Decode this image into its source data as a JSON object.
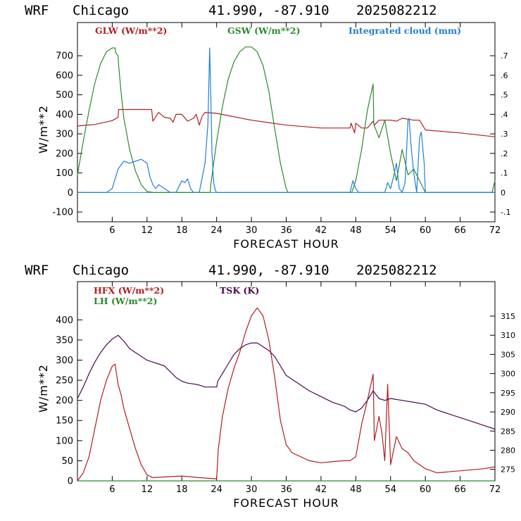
{
  "panels": [
    {
      "header": {
        "model": "WRF",
        "city": "Chicago",
        "coords": "41.990, -87.910",
        "run": "2025082212"
      },
      "legend": [
        {
          "text": "GLW (W/m**2)",
          "color": "#b21e1e"
        },
        {
          "text": "GSW (W/m**2)",
          "color": "#2a8a2a"
        },
        {
          "text": "Integrated cloud (mm)",
          "color": "#1f7fd6"
        }
      ],
      "ylabel": "W/m**2",
      "xlabel": "FORECAST HOUR",
      "yticks": [
        "-100",
        "0",
        "100",
        "200",
        "300",
        "400",
        "500",
        "600",
        "700"
      ],
      "y2ticks": [
        "-.1",
        "0",
        ".1",
        ".2",
        ".3",
        ".4",
        ".5",
        ".6",
        ".7"
      ],
      "xticks": [
        "6",
        "12",
        "18",
        "24",
        "30",
        "36",
        "42",
        "48",
        "54",
        "60",
        "66",
        "72"
      ]
    },
    {
      "header": {
        "model": "WRF",
        "city": "Chicago",
        "coords": "41.990, -87.910",
        "run": "2025082212"
      },
      "legend": [
        {
          "text": "HFX (W/m**2)",
          "color": "#b21e1e"
        },
        {
          "text": "LH (W/m**2)",
          "color": "#2a8a2a"
        },
        {
          "text": "TSK (K)",
          "color": "#4b0a4b"
        }
      ],
      "ylabel": "W/m**2",
      "xlabel": "FORECAST HOUR",
      "yticks": [
        "0",
        "50",
        "100",
        "150",
        "200",
        "250",
        "300",
        "350",
        "400"
      ],
      "y2ticks": [
        "275",
        "280",
        "285",
        "290",
        "295",
        "300",
        "305",
        "310",
        "315"
      ],
      "xticks": [
        "6",
        "12",
        "18",
        "24",
        "30",
        "36",
        "42",
        "48",
        "54",
        "60",
        "66",
        "72"
      ]
    }
  ],
  "chart_data": [
    {
      "type": "line",
      "xlabel": "FORECAST HOUR",
      "ylabel": "W/m**2",
      "xlim": [
        0,
        72
      ],
      "ylim": [
        -150,
        870
      ],
      "y2lim": [
        -0.15,
        0.87
      ],
      "series": [
        {
          "name": "GLW (W/m**2)",
          "color": "#b21e1e",
          "axis": "left",
          "x": [
            0,
            3,
            6,
            7,
            7.1,
            12,
            12.8,
            13,
            14,
            15,
            16,
            16.5,
            17,
            18,
            19,
            20,
            20.5,
            21,
            21.5,
            22,
            24,
            30,
            36,
            42,
            47,
            47.2,
            47.8,
            48,
            49,
            50,
            51,
            51.2,
            52,
            54,
            55,
            56,
            57,
            58,
            59,
            60,
            66,
            72
          ],
          "y": [
            340,
            348,
            368,
            385,
            425,
            425,
            425,
            365,
            410,
            385,
            380,
            360,
            400,
            400,
            365,
            380,
            400,
            345,
            390,
            410,
            405,
            370,
            345,
            330,
            330,
            355,
            305,
            355,
            330,
            330,
            365,
            345,
            370,
            370,
            365,
            380,
            375,
            370,
            370,
            320,
            305,
            285
          ]
        },
        {
          "name": "GSW (W/m**2)",
          "color": "#2a8a2a",
          "axis": "left",
          "x": [
            0,
            1,
            2,
            3,
            4,
            5,
            6,
            6.5,
            6.6,
            7,
            7.1,
            7.5,
            8,
            9,
            10,
            11,
            12,
            13,
            22.9,
            23,
            24,
            25,
            26,
            27,
            28,
            29,
            30,
            31,
            32,
            33,
            34,
            35,
            36,
            36.3,
            47.3,
            48,
            49,
            50,
            51,
            51.1,
            52,
            53,
            54,
            55,
            56,
            57,
            58,
            60,
            71.5,
            72
          ],
          "y": [
            90,
            260,
            420,
            560,
            660,
            720,
            740,
            740,
            715,
            700,
            650,
            520,
            380,
            220,
            110,
            40,
            5,
            0,
            0,
            40,
            260,
            440,
            580,
            670,
            720,
            745,
            745,
            720,
            650,
            520,
            330,
            150,
            20,
            0,
            0,
            60,
            220,
            420,
            555,
            350,
            280,
            370,
            200,
            60,
            220,
            90,
            120,
            0,
            0,
            60
          ]
        },
        {
          "name": "Integrated cloud (mm)",
          "color": "#1f7fd6",
          "axis": "right",
          "x": [
            0,
            5,
            6,
            7,
            8,
            9,
            10,
            11,
            12,
            12.5,
            13,
            13.5,
            14,
            15,
            16,
            17,
            18,
            18.5,
            19,
            19.5,
            20,
            21,
            22,
            22.5,
            22.8,
            23,
            23.2,
            23.5,
            23.8,
            24,
            47,
            47.5,
            48,
            48.5,
            49,
            53,
            53.5,
            54,
            54.5,
            55,
            55.5,
            56,
            56.5,
            57,
            57.2,
            57.5,
            58,
            58.5,
            59,
            59.3,
            59.8,
            60,
            72
          ],
          "y": [
            0,
            0,
            0.02,
            0.12,
            0.16,
            0.15,
            0.16,
            0.17,
            0.15,
            0.08,
            0.04,
            0.02,
            0.04,
            0.02,
            0,
            0,
            0.06,
            0.05,
            0.07,
            0.02,
            0,
            0,
            0.15,
            0.35,
            0.74,
            0.5,
            0.2,
            0.05,
            0.01,
            0,
            0,
            0.06,
            0.02,
            0,
            0,
            0,
            0.05,
            0.02,
            0.08,
            0.15,
            0.02,
            0,
            0.05,
            0.37,
            0.38,
            0.25,
            0.1,
            0,
            0.28,
            0.31,
            0.15,
            0,
            0
          ]
        }
      ]
    },
    {
      "type": "line",
      "xlabel": "FORECAST HOUR",
      "ylabel": "W/m**2",
      "xlim": [
        0,
        72
      ],
      "ylim": [
        0,
        495
      ],
      "y2lim": [
        272,
        324
      ],
      "series": [
        {
          "name": "HFX (W/m**2)",
          "color": "#b21e1e",
          "axis": "left",
          "x": [
            0,
            1,
            2,
            3,
            4,
            5,
            6,
            6.5,
            7,
            7.5,
            8,
            9,
            10,
            11,
            12,
            13,
            18,
            21,
            24,
            24.3,
            25,
            26,
            27,
            28,
            29,
            30,
            31,
            32,
            33,
            34,
            35,
            36,
            37,
            40,
            42,
            44,
            46,
            47,
            48,
            49,
            50,
            51,
            51.2,
            52,
            52.5,
            53,
            53.5,
            54,
            55,
            56,
            57,
            58,
            59,
            60,
            62,
            66,
            70,
            72
          ],
          "y": [
            0,
            20,
            60,
            130,
            200,
            250,
            285,
            290,
            240,
            215,
            180,
            130,
            80,
            40,
            15,
            8,
            12,
            8,
            5,
            80,
            160,
            230,
            280,
            320,
            370,
            410,
            430,
            410,
            350,
            260,
            150,
            90,
            70,
            50,
            45,
            48,
            50,
            50,
            60,
            140,
            200,
            265,
            100,
            160,
            120,
            50,
            240,
            40,
            110,
            80,
            70,
            50,
            40,
            30,
            20,
            25,
            30,
            35
          ]
        },
        {
          "name": "LH (W/m**2)",
          "color": "#2a8a2a",
          "axis": "left",
          "x": [
            0,
            72
          ],
          "y": [
            0,
            0
          ]
        },
        {
          "name": "TSK (K)",
          "color": "#4b0a4b",
          "axis": "right",
          "x": [
            0,
            1,
            2,
            3,
            4,
            5,
            6,
            7,
            8,
            9,
            10,
            11,
            12,
            13,
            14,
            15,
            16,
            17,
            18,
            19,
            20,
            21,
            22,
            23,
            24,
            24.2,
            25,
            26,
            27,
            28,
            29,
            30,
            31,
            32,
            33,
            34,
            35,
            36,
            38,
            40,
            42,
            44,
            46,
            47,
            48,
            49,
            50,
            51,
            52,
            53,
            54,
            56,
            58,
            60,
            62,
            64,
            66,
            68,
            70,
            72
          ],
          "y": [
            293.5,
            296.5,
            300,
            303,
            305.5,
            307.5,
            309,
            310,
            308.5,
            306.5,
            305.5,
            304.5,
            303.5,
            303,
            302.5,
            302,
            300.5,
            299,
            298,
            297.5,
            297.3,
            297,
            296.5,
            296.5,
            296.5,
            298,
            300,
            302.5,
            305,
            306.5,
            307.5,
            308,
            308,
            307,
            306,
            304.5,
            302,
            299.5,
            297.5,
            295.5,
            294,
            292.5,
            291.5,
            290.5,
            290,
            291,
            293,
            295.5,
            293.5,
            293,
            293.5,
            293,
            292.5,
            292,
            290.5,
            289.5,
            288.5,
            287.5,
            286.5,
            285.5
          ]
        }
      ]
    }
  ]
}
